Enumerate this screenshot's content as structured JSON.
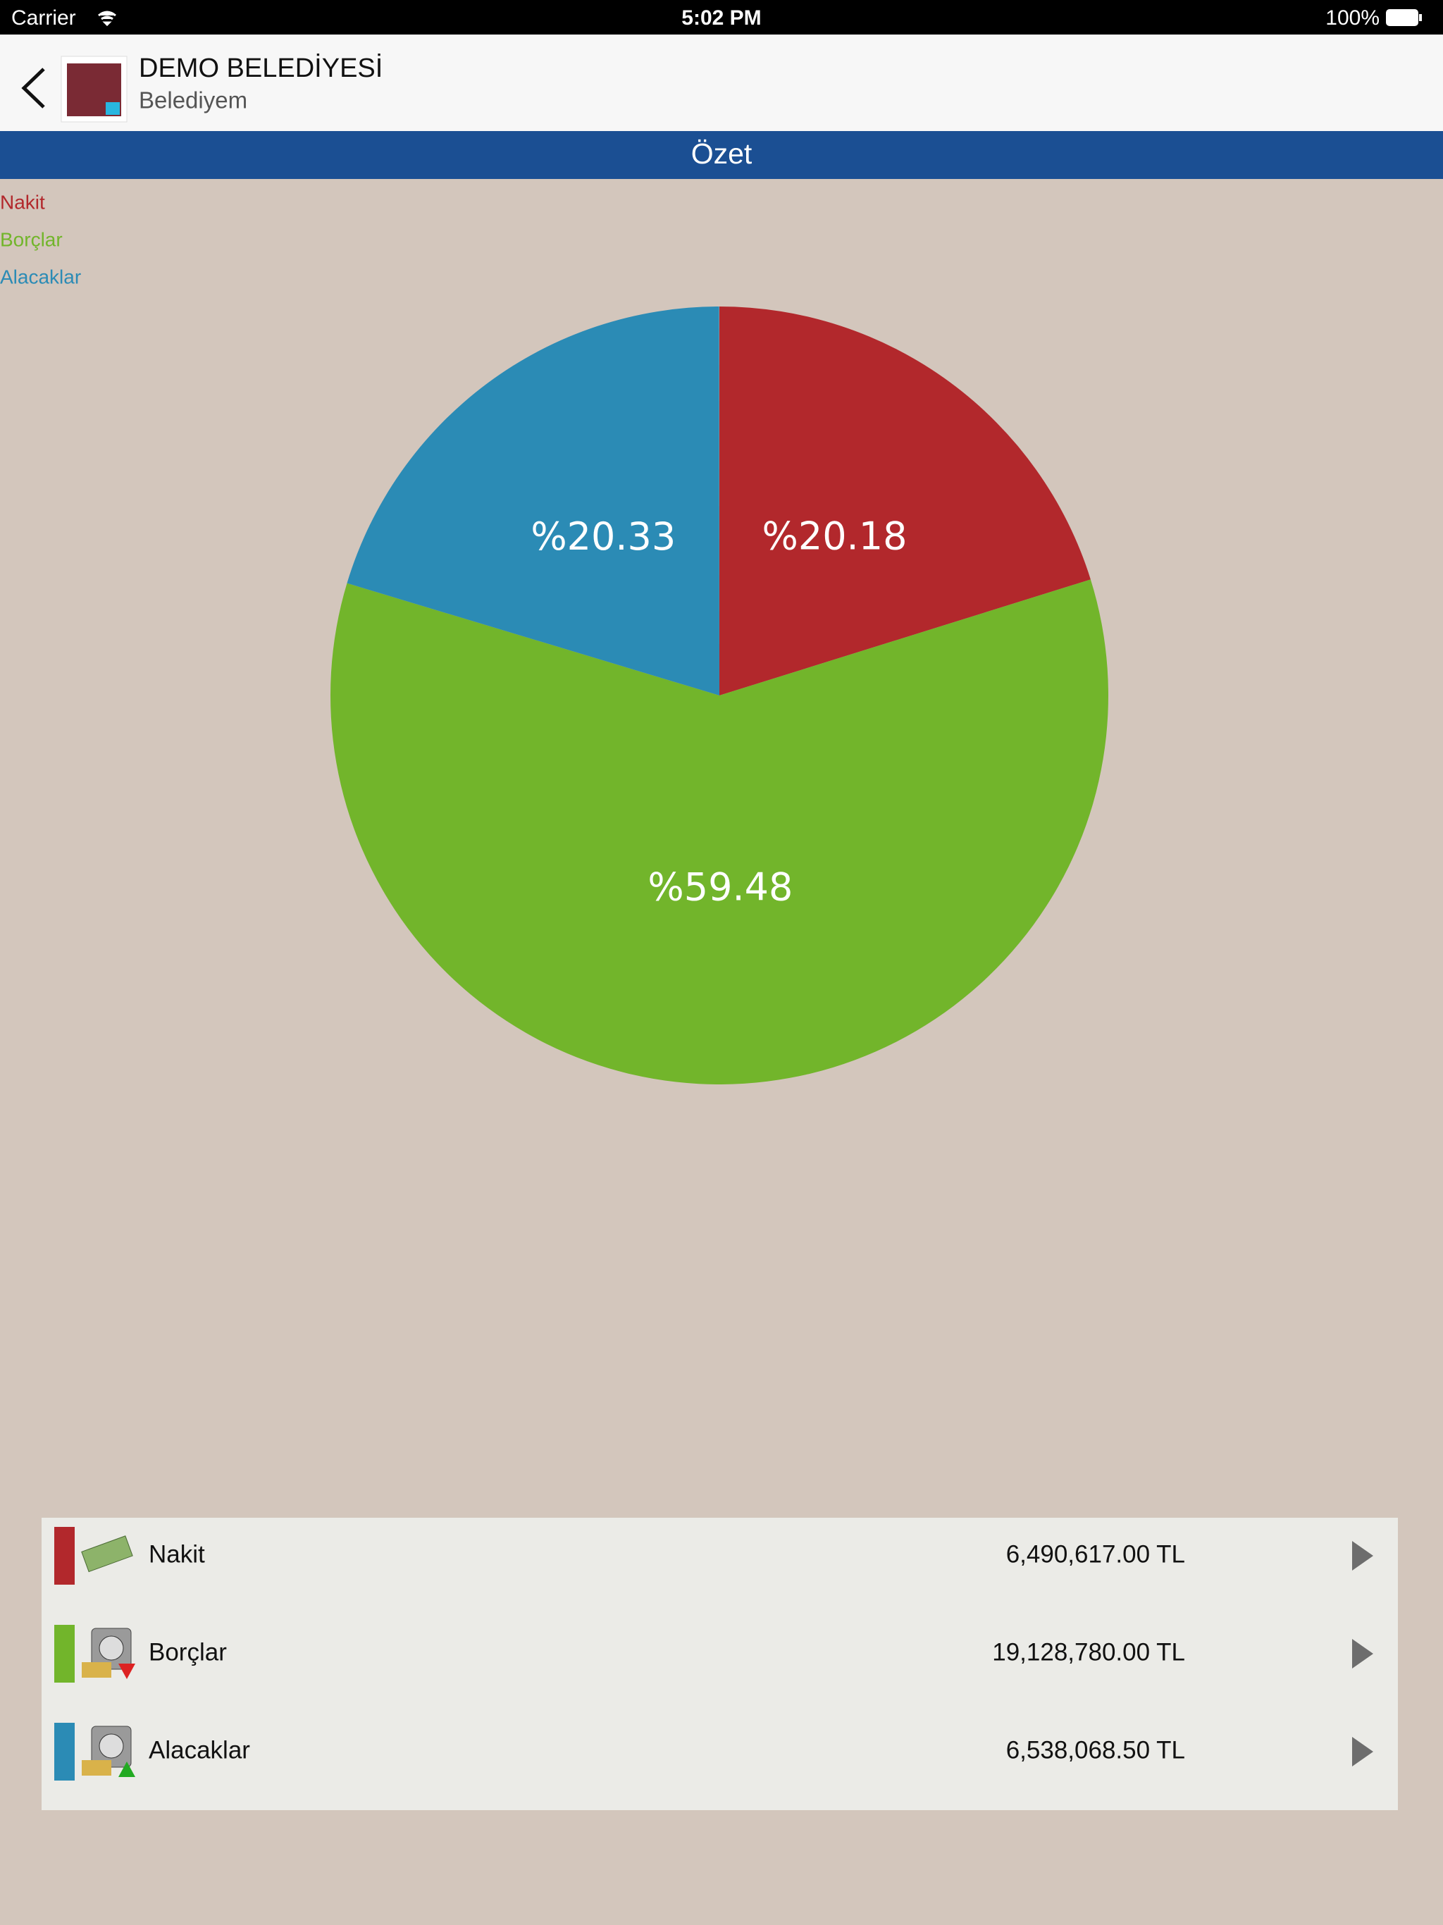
{
  "status_bar": {
    "carrier": "Carrier",
    "time": "5:02 PM",
    "battery": "100%"
  },
  "header": {
    "title": "DEMO BELEDİYESİ",
    "subtitle": "Belediyem"
  },
  "section": {
    "title": "Özet"
  },
  "chart_data": {
    "type": "pie",
    "categories": [
      "Nakit",
      "Borçlar",
      "Alacaklar"
    ],
    "values": [
      20.18,
      59.48,
      20.33
    ],
    "value_labels": [
      "%20.18",
      "%59.48",
      "%20.33"
    ],
    "colors": [
      "#b2282c",
      "#72b52b",
      "#2b8bb5"
    ]
  },
  "list": {
    "rows": [
      {
        "name": "Nakit",
        "amount": "6,490,617.00 TL"
      },
      {
        "name": "Borçlar",
        "amount": "19,128,780.00 TL"
      },
      {
        "name": "Alacaklar",
        "amount": "6,538,068.50 TL"
      }
    ]
  }
}
